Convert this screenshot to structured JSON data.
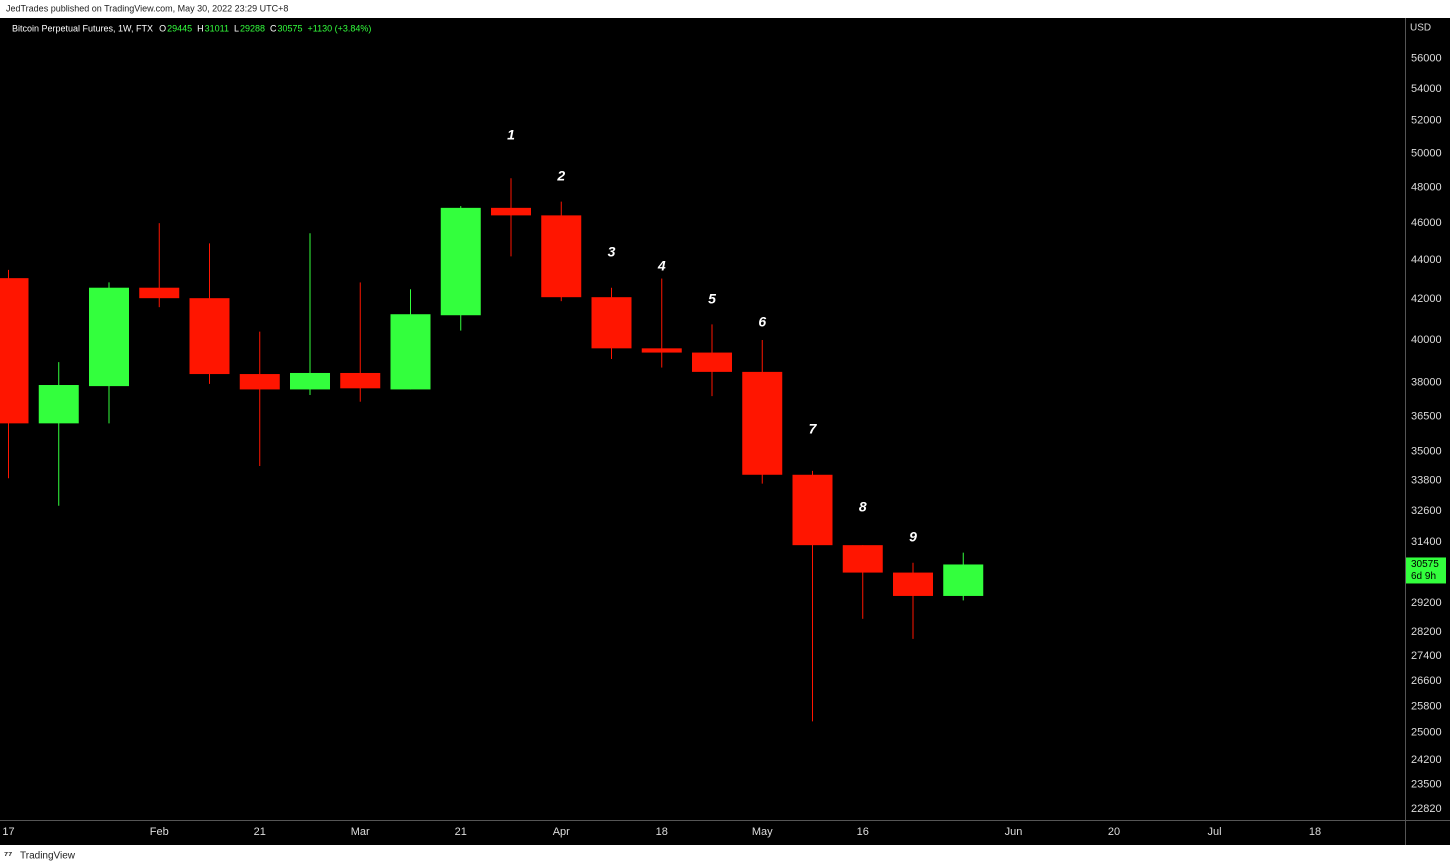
{
  "page": {
    "publisher_line": "JedTrades published on TradingView.com, May 30, 2022 23:29 UTC+8",
    "brand": "TradingView"
  },
  "chart_data": {
    "type": "candlestick",
    "legend": {
      "symbol": "Bitcoin Perpetual Futures, 1W, FTX",
      "open_prefix": "O",
      "high_prefix": "H",
      "low_prefix": "L",
      "close_prefix": "C",
      "change": "+1130 (+3.84%)"
    },
    "currency": "USD",
    "countdown": "6d 9h",
    "categories": [
      "17",
      null,
      null,
      "Feb",
      null,
      "21",
      null,
      "Mar",
      null,
      "21",
      null,
      "Apr",
      null,
      "18",
      null,
      "May",
      null,
      "16",
      null,
      null,
      "Jun",
      null,
      "20",
      null,
      "Jul",
      null,
      "18",
      null
    ],
    "open": [
      43070,
      36200,
      37850,
      42580,
      42050,
      38400,
      37700,
      38450,
      37700,
      41200,
      46850,
      46430,
      42100,
      39600,
      39400,
      38500,
      34040,
      31290,
      30280,
      29445,
      null,
      null,
      null,
      null,
      null,
      null,
      null,
      null
    ],
    "high": [
      43500,
      38950,
      42850,
      46000,
      44900,
      40400,
      45450,
      42850,
      42500,
      46950,
      48540,
      47200,
      42580,
      43050,
      40750,
      40000,
      34200,
      31290,
      30640,
      31011,
      null,
      null,
      null,
      null,
      null,
      null,
      null,
      null
    ],
    "low": [
      33900,
      32800,
      36200,
      41600,
      37950,
      34400,
      37450,
      37150,
      37700,
      40450,
      44210,
      41900,
      39100,
      38700,
      37400,
      33680,
      25340,
      28650,
      27970,
      29288,
      null,
      null,
      null,
      null,
      null,
      null,
      null,
      null
    ],
    "close": [
      36200,
      37900,
      42580,
      42050,
      38400,
      37700,
      38450,
      37750,
      41250,
      46850,
      46430,
      42100,
      39600,
      39400,
      38500,
      34040,
      31290,
      30280,
      29445,
      30575,
      null,
      null,
      null,
      null,
      null,
      null,
      null,
      null
    ],
    "up_color": "#33ff3d",
    "down_color": "#ff1500",
    "log_scale": true,
    "grid": false,
    "ylim": [
      22520,
      58800
    ],
    "yticks": [
      56000,
      54000,
      52000,
      50000,
      48000,
      46000,
      44000,
      42000,
      40000,
      38000,
      36500,
      35000,
      33800,
      32600,
      31400,
      29200,
      28200,
      27400,
      26600,
      25800,
      25000,
      24200,
      23500,
      22820
    ],
    "annotations": [
      "1",
      "2",
      "3",
      "4",
      "5",
      "6",
      "7",
      "8",
      "9"
    ]
  }
}
